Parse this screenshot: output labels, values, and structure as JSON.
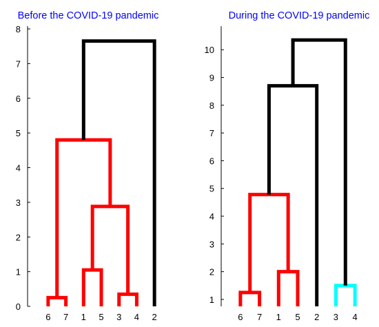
{
  "colors": {
    "title": "#0000ff",
    "axis": "#000000",
    "red_cluster": "#ff0000",
    "cyan_cluster": "#00ffff",
    "above_threshold": "#000000",
    "background": "#ffffff"
  },
  "chart_data": [
    {
      "type": "dendrogram",
      "title": "Before the COVID-19 pandemic",
      "ylim": [
        0,
        8
      ],
      "yticks": [
        0,
        1,
        2,
        3,
        4,
        5,
        6,
        7,
        8
      ],
      "leaf_order": [
        "6",
        "7",
        "1",
        "5",
        "3",
        "4",
        "2"
      ],
      "merges": [
        {
          "left": "leaf:6",
          "right": "leaf:7",
          "height": 0.25,
          "color": "#ff0000"
        },
        {
          "left": "leaf:1",
          "right": "leaf:5",
          "height": 1.05,
          "color": "#ff0000"
        },
        {
          "left": "leaf:3",
          "right": "leaf:4",
          "height": 0.35,
          "color": "#ff0000"
        },
        {
          "left": "m:1",
          "right": "m:2",
          "height": 2.88,
          "color": "#ff0000"
        },
        {
          "left": "m:0",
          "right": "m:3",
          "height": 4.8,
          "color": "#ff0000"
        },
        {
          "left": "m:4",
          "right": "leaf:2",
          "height": 7.65,
          "color": "#000000"
        }
      ]
    },
    {
      "type": "dendrogram",
      "title": "During the COVID-19 pandemic",
      "ylim": [
        0.75,
        10.75
      ],
      "yticks": [
        1,
        2,
        3,
        4,
        5,
        6,
        7,
        8,
        9,
        10
      ],
      "leaf_order": [
        "6",
        "7",
        "1",
        "5",
        "2",
        "3",
        "4"
      ],
      "merges": [
        {
          "left": "leaf:6",
          "right": "leaf:7",
          "height": 1.25,
          "color": "#ff0000"
        },
        {
          "left": "leaf:1",
          "right": "leaf:5",
          "height": 2.0,
          "color": "#ff0000"
        },
        {
          "left": "m:0",
          "right": "m:1",
          "height": 4.78,
          "color": "#ff0000"
        },
        {
          "left": "leaf:3",
          "right": "leaf:4",
          "height": 1.5,
          "color": "#00ffff"
        },
        {
          "left": "m:2",
          "right": "leaf:2",
          "height": 8.7,
          "color": "#000000"
        },
        {
          "left": "m:4",
          "right": "m:3",
          "height": 10.35,
          "color": "#000000"
        }
      ]
    }
  ]
}
